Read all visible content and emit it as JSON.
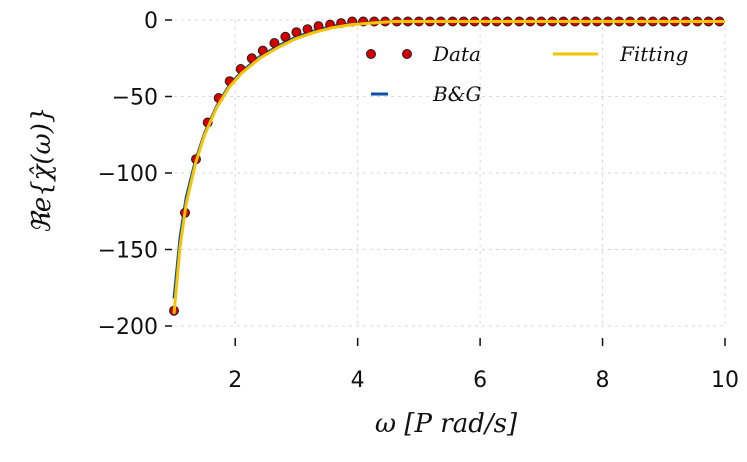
{
  "chart_data": {
    "type": "line",
    "title": "",
    "xlabel": "ω  [P rad/s]",
    "ylabel": "ℜe{χ̂(ω)}",
    "xlim": [
      1,
      10
    ],
    "ylim": [
      -200,
      0
    ],
    "xticks": [
      2,
      4,
      6,
      8,
      10
    ],
    "yticks": [
      0,
      -50,
      -100,
      -150,
      -200
    ],
    "xtick_labels": [
      "2",
      "4",
      "6",
      "8",
      "10"
    ],
    "ytick_labels": [
      "0",
      "−50",
      "−100",
      "−150",
      "−200"
    ],
    "grid": true,
    "legend_position": "top-right",
    "series": [
      {
        "name": "Data",
        "style": "markers",
        "color": "#d40000",
        "x": [
          1.0,
          1.18,
          1.36,
          1.55,
          1.73,
          1.91,
          2.09,
          2.27,
          2.45,
          2.64,
          2.82,
          3.0,
          3.18,
          3.36,
          3.55,
          3.73,
          3.91,
          4.09,
          4.27,
          4.45,
          4.64,
          4.82,
          5.0,
          5.18,
          5.36,
          5.55,
          5.73,
          5.91,
          6.09,
          6.27,
          6.45,
          6.64,
          6.82,
          7.0,
          7.18,
          7.36,
          7.55,
          7.73,
          7.91,
          8.09,
          8.27,
          8.45,
          8.64,
          8.82,
          9.0,
          9.18,
          9.36,
          9.55,
          9.73,
          9.91
        ],
        "y": [
          -190,
          -126,
          -91,
          -67,
          -51,
          -40,
          -32,
          -25,
          -20,
          -15,
          -11,
          -8,
          -6,
          -4,
          -3,
          -2,
          -1,
          -1,
          -1,
          -1,
          -1,
          -1,
          -1,
          -1,
          -1,
          -1,
          -1,
          -1,
          -1,
          -1,
          -1,
          -1,
          -1,
          -1,
          -1,
          -1,
          -1,
          -1,
          -1,
          -1,
          -1,
          -1,
          -1,
          -1,
          -1,
          -1,
          -1,
          -1,
          -1,
          -1
        ]
      },
      {
        "name": "B&G",
        "style": "line",
        "color": "#0d4fa8",
        "x": [
          1.0,
          1.1,
          1.2,
          1.35,
          1.5,
          1.7,
          1.9,
          2.1,
          2.4,
          2.7,
          3.0,
          3.3,
          3.6,
          3.9,
          4.2,
          4.6,
          5.0,
          6.0,
          7.0,
          8.0,
          9.0,
          10.0
        ],
        "y": [
          -182,
          -142,
          -116,
          -92,
          -74,
          -56,
          -43,
          -34,
          -24,
          -17,
          -11,
          -7,
          -4,
          -2.5,
          -1.5,
          -1,
          -1,
          -1,
          -1,
          -1,
          -1,
          -1
        ]
      },
      {
        "name": "Fitting",
        "style": "line",
        "color": "#f5c400",
        "x": [
          1.0,
          1.1,
          1.2,
          1.35,
          1.5,
          1.7,
          1.9,
          2.1,
          2.4,
          2.7,
          3.0,
          3.3,
          3.6,
          3.9,
          4.2,
          4.6,
          5.0,
          6.0,
          7.0,
          8.0,
          9.0,
          10.0
        ],
        "y": [
          -192,
          -148,
          -120,
          -94,
          -75,
          -57,
          -44,
          -35,
          -25,
          -18,
          -12,
          -8,
          -5,
          -3,
          -2,
          -1,
          -1,
          -1,
          -1,
          -1,
          -1,
          -1
        ]
      }
    ]
  }
}
